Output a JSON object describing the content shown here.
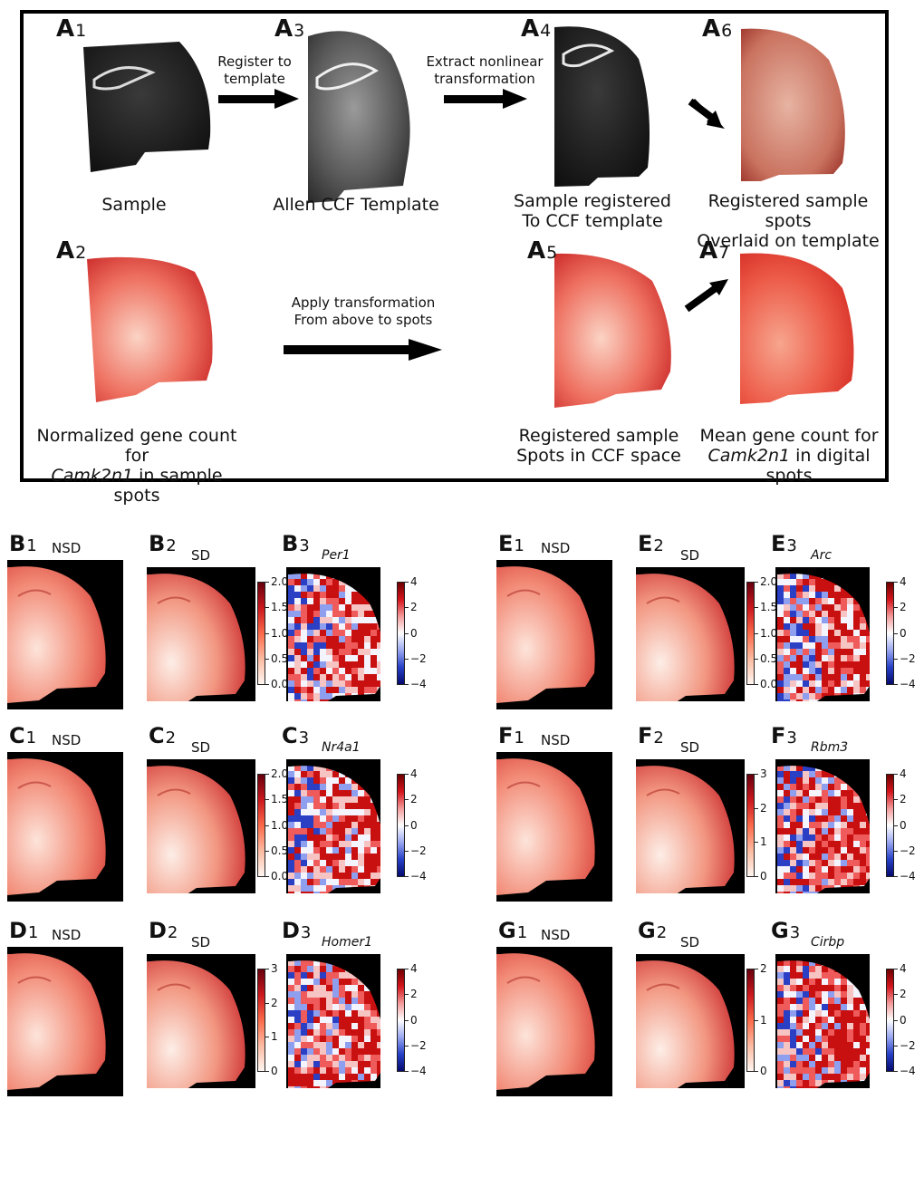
{
  "panel_a": {
    "labels": {
      "a1": {
        "letter": "A",
        "num": "1"
      },
      "a2": {
        "letter": "A",
        "num": "2"
      },
      "a3": {
        "letter": "A",
        "num": "3"
      },
      "a4": {
        "letter": "A",
        "num": "4"
      },
      "a5": {
        "letter": "A",
        "num": "5"
      },
      "a6": {
        "letter": "A",
        "num": "6"
      },
      "a7": {
        "letter": "A",
        "num": "7"
      }
    },
    "captions": {
      "sample": "Sample",
      "template": "Allen CCF Template",
      "registered_line1": "Sample registered",
      "registered_line2": "To CCF template",
      "overlaid_line1": "Registered sample spots",
      "overlaid_line2": "Overlaid on template",
      "normalized_line1": "Normalized gene count for",
      "normalized_gene": "Camk2n1",
      "normalized_rest": " in sample spots",
      "ccfspots_line1": "Registered sample",
      "ccfspots_line2": "Spots in CCF space",
      "mean_line1": "Mean gene count for",
      "mean_gene": "Camk2n1",
      "mean_rest": " in digital spots"
    },
    "arrows": {
      "register_line1": "Register to",
      "register_line2": "template",
      "extract_line1": "Extract nonlinear",
      "extract_line2": "transformation",
      "apply_line1": "Apply transformation",
      "apply_line2": "From above to spots"
    }
  },
  "panels": [
    {
      "id": "b",
      "letter": "B",
      "nsd": "NSD",
      "sd": "SD",
      "gene": "Per1",
      "sd_ticks": [
        "2.0",
        "1.5",
        "1.0",
        "0.5",
        "0.0"
      ]
    },
    {
      "id": "c",
      "letter": "C",
      "nsd": "NSD",
      "sd": "SD",
      "gene": "Nr4a1",
      "sd_ticks": [
        "2.0",
        "1.5",
        "1.0",
        "0.5",
        "0.0"
      ]
    },
    {
      "id": "d",
      "letter": "D",
      "nsd": "NSD",
      "sd": "SD",
      "gene": "Homer1",
      "sd_ticks": [
        "3",
        "2",
        "1",
        "0"
      ]
    },
    {
      "id": "e",
      "letter": "E",
      "nsd": "NSD",
      "sd": "SD",
      "gene": "Arc",
      "sd_ticks": [
        "2.0",
        "1.5",
        "1.0",
        "0.5",
        "0.0"
      ]
    },
    {
      "id": "f",
      "letter": "F",
      "nsd": "NSD",
      "sd": "SD",
      "gene": "Rbm3",
      "sd_ticks": [
        "3",
        "2",
        "1",
        "0"
      ]
    },
    {
      "id": "g",
      "letter": "G",
      "nsd": "NSD",
      "sd": "SD",
      "gene": "Cirbp",
      "sd_ticks": [
        "2",
        "1",
        "0"
      ]
    }
  ],
  "diff_ticks": [
    "4",
    "2",
    "0",
    "−2",
    "−4"
  ],
  "colors": {
    "red_high": "#cb181d",
    "red_low": "#fff5f0",
    "blue_low": "#050a6e",
    "background": "#000000"
  }
}
